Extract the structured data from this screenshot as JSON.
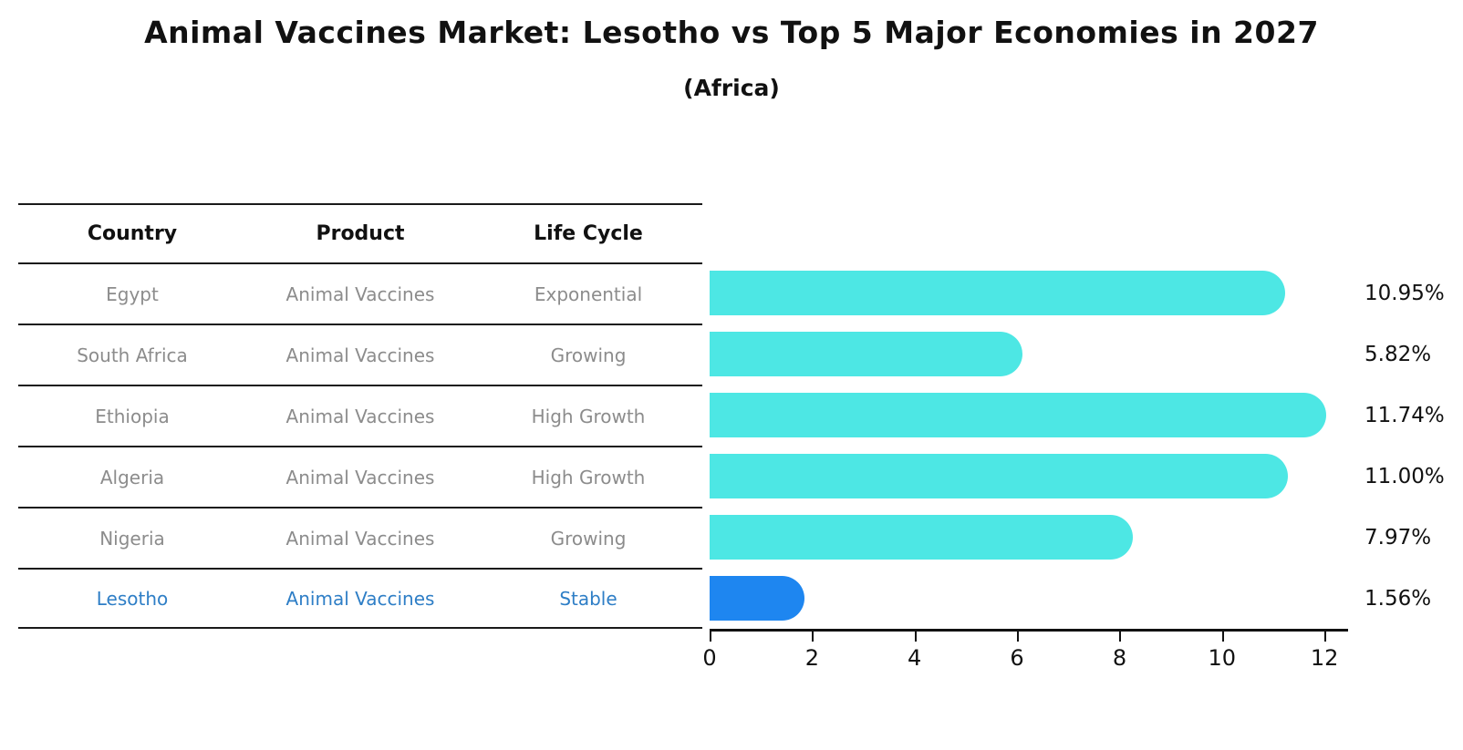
{
  "title": "Animal Vaccines Market: Lesotho vs Top 5 Major Economies in 2027",
  "subtitle": "(Africa)",
  "colors": {
    "bar": "#4de7e4",
    "highlight_bar": "#1e86f0",
    "highlight_text": "#2e7ec6",
    "muted_text": "#8c8c8c",
    "header_text": "#111111",
    "line": "#1a1a1a"
  },
  "table": {
    "headers": [
      "Country",
      "Product",
      "Life Cycle"
    ],
    "rows": [
      {
        "country": "Egypt",
        "product": "Animal Vaccines",
        "life_cycle": "Exponential",
        "highlight": false
      },
      {
        "country": "South Africa",
        "product": "Animal Vaccines",
        "life_cycle": "Growing",
        "highlight": false
      },
      {
        "country": "Ethiopia",
        "product": "Animal Vaccines",
        "life_cycle": "High Growth",
        "highlight": false
      },
      {
        "country": "Algeria",
        "product": "Animal Vaccines",
        "life_cycle": "High Growth",
        "highlight": false
      },
      {
        "country": "Nigeria",
        "product": "Animal Vaccines",
        "life_cycle": "Growing",
        "highlight": false
      },
      {
        "country": "Lesotho",
        "product": "Animal Vaccines",
        "life_cycle": "Stable",
        "highlight": true
      }
    ]
  },
  "chart_data": {
    "type": "bar",
    "orientation": "horizontal",
    "title": "Animal Vaccines Market: Lesotho vs Top 5 Major Economies in 2027",
    "subtitle": "(Africa)",
    "categories": [
      "Egypt",
      "South Africa",
      "Ethiopia",
      "Algeria",
      "Nigeria",
      "Lesotho"
    ],
    "values": [
      10.95,
      5.82,
      11.74,
      11.0,
      7.97,
      1.56
    ],
    "value_labels": [
      "10.95%",
      "5.82%",
      "11.74%",
      "11.00%",
      "7.97%",
      "1.56%"
    ],
    "highlight_index": 5,
    "xlabel": "",
    "ylabel": "",
    "xticks": [
      0,
      2,
      4,
      6,
      8,
      10,
      12
    ],
    "xlim": [
      0,
      12.46
    ],
    "grid": false,
    "legend_position": "none"
  }
}
